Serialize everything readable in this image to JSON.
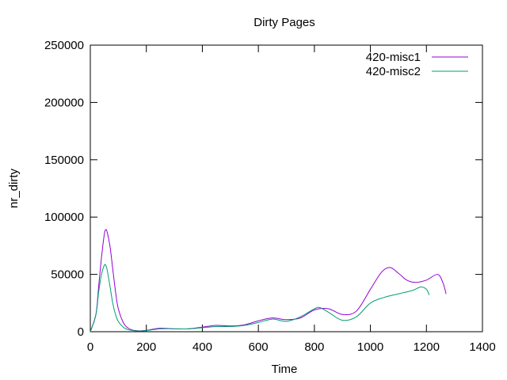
{
  "chart_data": {
    "type": "line",
    "title": "Dirty Pages",
    "xlabel": "Time",
    "ylabel": "nr_dirty",
    "xlim": [
      0,
      1400
    ],
    "ylim": [
      0,
      250000
    ],
    "xticks": [
      0,
      200,
      400,
      600,
      800,
      1000,
      1200,
      1400
    ],
    "yticks": [
      0,
      50000,
      100000,
      150000,
      200000,
      250000
    ],
    "grid": false,
    "legend_position": "top-right",
    "series": [
      {
        "name": "420-misc1",
        "color": "#9400d3",
        "x": [
          0,
          20,
          30,
          40,
          50,
          55,
          60,
          70,
          80,
          90,
          100,
          120,
          140,
          160,
          180,
          200,
          250,
          300,
          350,
          400,
          450,
          500,
          550,
          600,
          650,
          700,
          750,
          800,
          850,
          900,
          950,
          1000,
          1040,
          1070,
          1100,
          1130,
          1160,
          1200,
          1240,
          1260,
          1270
        ],
        "y": [
          0,
          15000,
          40000,
          65000,
          85000,
          89000,
          87000,
          75000,
          55000,
          35000,
          20000,
          7000,
          2500,
          1000,
          800,
          1200,
          3000,
          2500,
          2500,
          4000,
          5500,
          5000,
          6000,
          9500,
          12000,
          10500,
          12000,
          19000,
          20000,
          15000,
          18000,
          37000,
          52000,
          56000,
          51000,
          45000,
          43000,
          45000,
          50000,
          42000,
          33000
        ]
      },
      {
        "name": "420-misc2",
        "color": "#009e73",
        "x": [
          0,
          20,
          30,
          40,
          50,
          55,
          60,
          70,
          80,
          90,
          100,
          120,
          140,
          160,
          180,
          200,
          250,
          300,
          350,
          400,
          450,
          500,
          550,
          600,
          650,
          700,
          750,
          800,
          820,
          850,
          900,
          950,
          1000,
          1050,
          1100,
          1150,
          1180,
          1200,
          1210
        ],
        "y": [
          0,
          15000,
          35000,
          50000,
          58000,
          58000,
          54000,
          40000,
          25000,
          15000,
          9000,
          3500,
          1500,
          800,
          600,
          1000,
          2500,
          2500,
          2500,
          3500,
          4500,
          4500,
          5500,
          8000,
          11000,
          9000,
          13000,
          20000,
          21000,
          17000,
          10000,
          13000,
          25000,
          30000,
          33000,
          36000,
          39000,
          37000,
          32000
        ]
      }
    ]
  }
}
